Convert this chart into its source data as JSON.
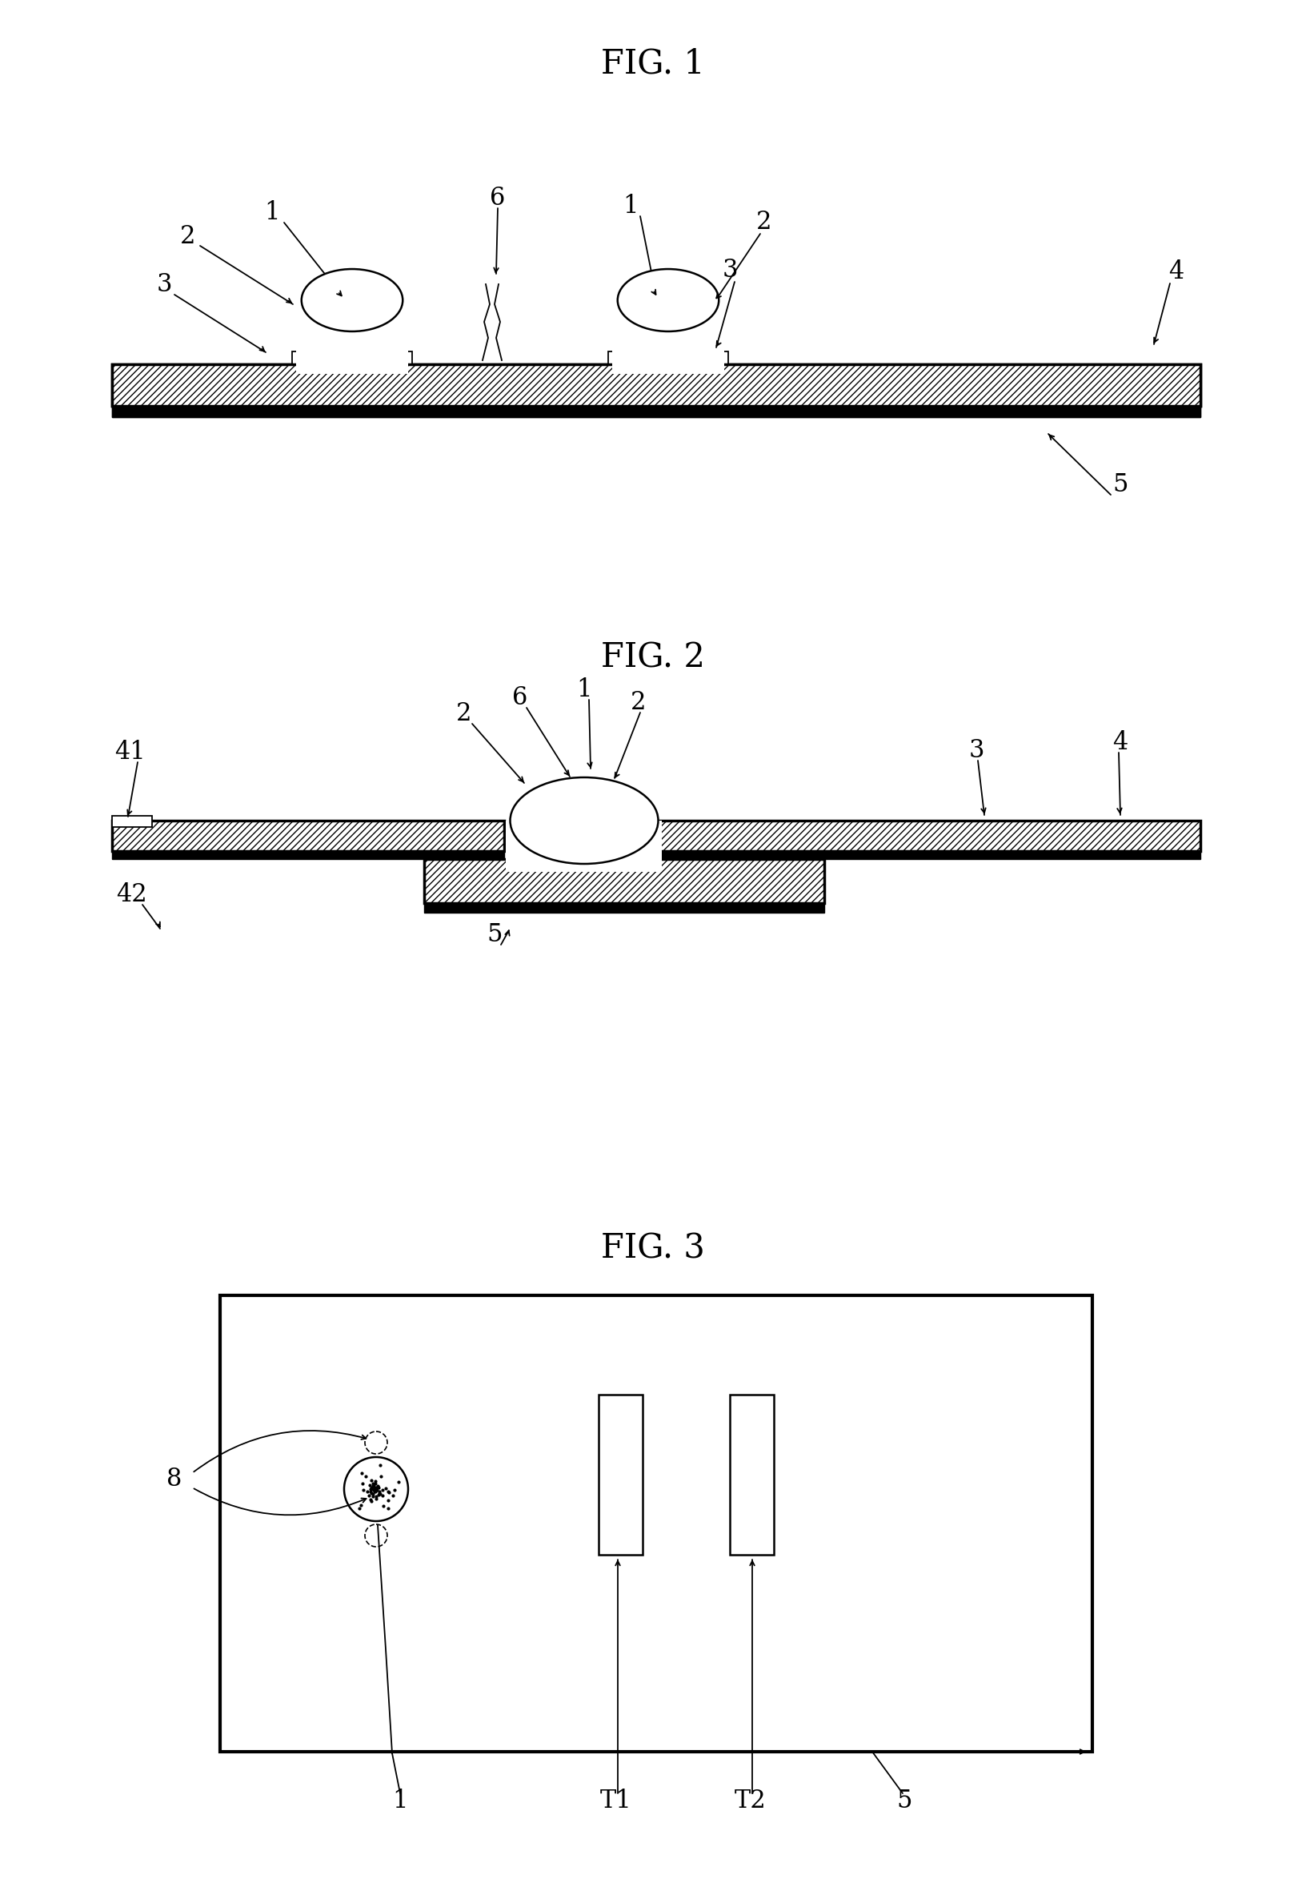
{
  "fig1_title": "FIG. 1",
  "fig2_title": "FIG. 2",
  "fig3_title": "FIG. 3",
  "bg_color": "#ffffff",
  "line_color": "#000000",
  "fig_title_fontsize": 30,
  "label_fontsize": 22
}
